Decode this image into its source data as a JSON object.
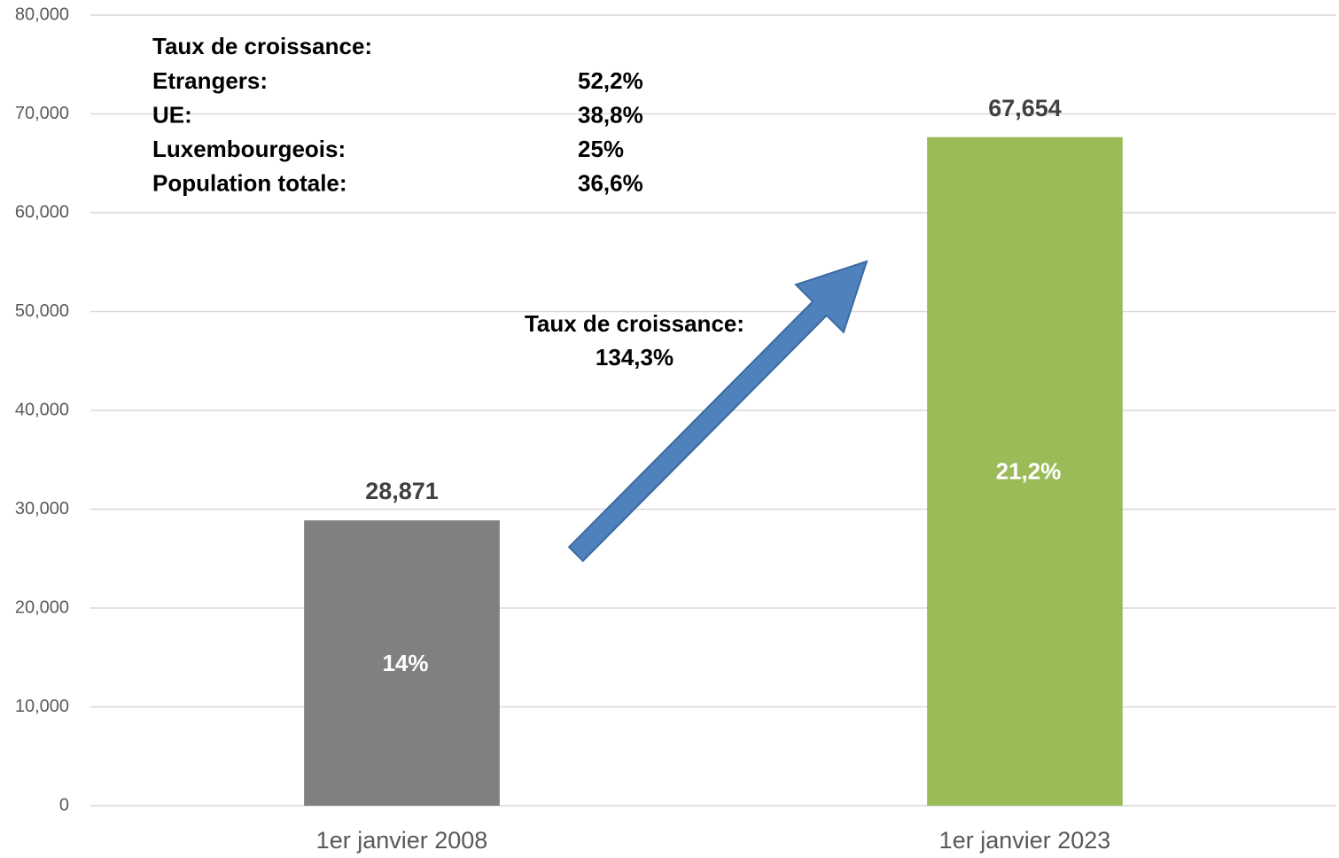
{
  "chart_data": {
    "type": "bar",
    "categories": [
      "1er janvier 2008",
      "1er janvier 2023"
    ],
    "values": [
      28871,
      67654
    ],
    "value_labels": [
      "28,871",
      "67,654"
    ],
    "colors": [
      "#808080",
      "#9bbb59"
    ],
    "inner_labels": [
      "14%",
      "21,2%"
    ],
    "ylim": [
      0,
      80000
    ],
    "yticks": [
      0,
      {
        "value": 10000,
        "label": "10,000"
      },
      {
        "value": 20000,
        "label": "20,000"
      },
      {
        "value": 30000,
        "label": "30,000"
      },
      {
        "value": 40000,
        "label": "40,000"
      },
      {
        "value": 50000,
        "label": "50,000"
      },
      {
        "value": 60000,
        "label": "60,000"
      },
      {
        "value": 70000,
        "label": "70,000"
      },
      {
        "value": 80000,
        "label": "80,000"
      }
    ],
    "grid": true,
    "growth_table": {
      "title": "Taux de croissance:",
      "rows": [
        [
          "Etrangers:",
          "52,2%"
        ],
        [
          "UE:",
          "38,8%"
        ],
        [
          "Luxembourgeois:",
          "25%"
        ],
        [
          "Population totale:",
          "36,6%"
        ]
      ]
    },
    "total_growth": {
      "label": "Taux de croissance:",
      "value": "134,3%"
    }
  }
}
